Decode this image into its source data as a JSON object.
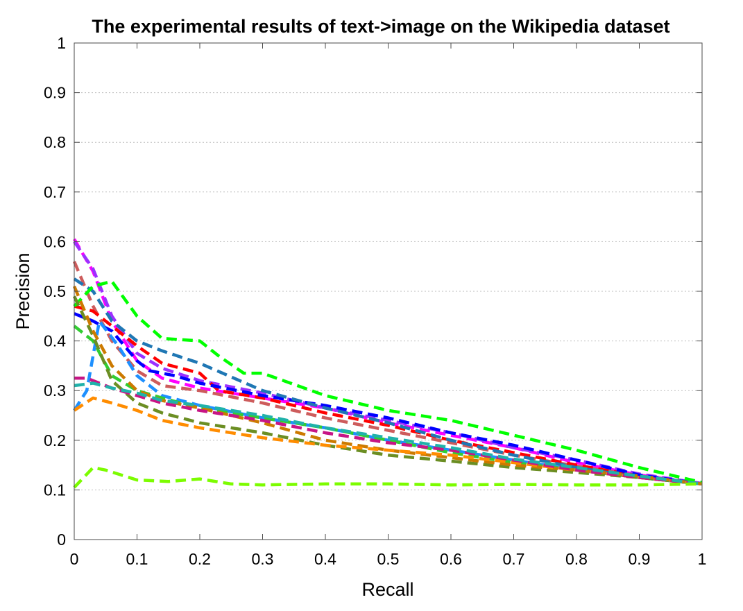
{
  "chart_data": {
    "type": "line",
    "title": "The experimental results of text->image on the Wikipedia dataset",
    "xlabel": "Recall",
    "ylabel": "Precision",
    "xlim": [
      0,
      1
    ],
    "ylim": [
      0,
      1
    ],
    "xticks": [
      "0",
      "0.1",
      "0.2",
      "0.3",
      "0.4",
      "0.5",
      "0.6",
      "0.7",
      "0.8",
      "0.9",
      "1"
    ],
    "yticks": [
      "0",
      "0.1",
      "0.2",
      "0.3",
      "0.4",
      "0.5",
      "0.6",
      "0.7",
      "0.8",
      "0.9",
      "1"
    ],
    "grid": "horizontal",
    "legend": "none",
    "series": [
      {
        "color": "#ff00ff",
        "x": [
          0,
          0.03,
          0.06,
          0.1,
          0.14,
          0.2,
          0.3,
          0.4,
          0.5,
          0.6,
          0.7,
          0.8,
          0.9,
          1.0
        ],
        "y": [
          0.605,
          0.54,
          0.44,
          0.36,
          0.325,
          0.305,
          0.285,
          0.265,
          0.235,
          0.21,
          0.185,
          0.155,
          0.13,
          0.112
        ]
      },
      {
        "color": "#9b30ff",
        "x": [
          0,
          0.03,
          0.06,
          0.1,
          0.14,
          0.2,
          0.3,
          0.4,
          0.5,
          0.6,
          0.7,
          0.8,
          0.9,
          1.0
        ],
        "y": [
          0.6,
          0.545,
          0.45,
          0.375,
          0.345,
          0.32,
          0.295,
          0.265,
          0.24,
          0.215,
          0.185,
          0.16,
          0.132,
          0.113
        ]
      },
      {
        "color": "#cd5c5c",
        "x": [
          0,
          0.03,
          0.06,
          0.1,
          0.14,
          0.2,
          0.3,
          0.4,
          0.5,
          0.6,
          0.7,
          0.8,
          0.9,
          1.0
        ],
        "y": [
          0.56,
          0.47,
          0.4,
          0.34,
          0.31,
          0.3,
          0.275,
          0.245,
          0.22,
          0.195,
          0.17,
          0.148,
          0.128,
          0.112
        ]
      },
      {
        "color": "#ff0000",
        "x": [
          0,
          0.03,
          0.06,
          0.1,
          0.14,
          0.2,
          0.23,
          0.3,
          0.4,
          0.5,
          0.6,
          0.7,
          0.8,
          0.9,
          1.0
        ],
        "y": [
          0.47,
          0.46,
          0.43,
          0.39,
          0.355,
          0.335,
          0.3,
          0.285,
          0.255,
          0.23,
          0.2,
          0.175,
          0.15,
          0.128,
          0.112
        ]
      },
      {
        "color": "#0000ff",
        "x": [
          0,
          0.03,
          0.06,
          0.1,
          0.12,
          0.16,
          0.2,
          0.3,
          0.4,
          0.5,
          0.6,
          0.7,
          0.8,
          0.9,
          1.0
        ],
        "y": [
          0.455,
          0.44,
          0.42,
          0.36,
          0.34,
          0.33,
          0.315,
          0.29,
          0.27,
          0.245,
          0.215,
          0.19,
          0.16,
          0.13,
          0.112
        ]
      },
      {
        "color": "#1e90ff",
        "x": [
          0,
          0.02,
          0.04,
          0.07,
          0.1,
          0.14,
          0.2,
          0.3,
          0.4,
          0.5,
          0.6,
          0.7,
          0.8,
          0.9,
          1.0
        ],
        "y": [
          0.26,
          0.3,
          0.44,
          0.39,
          0.33,
          0.29,
          0.27,
          0.245,
          0.225,
          0.2,
          0.18,
          0.16,
          0.14,
          0.125,
          0.112
        ]
      },
      {
        "color": "#1f77b4",
        "x": [
          0,
          0.03,
          0.06,
          0.1,
          0.14,
          0.2,
          0.3,
          0.4,
          0.5,
          0.6,
          0.7,
          0.8,
          0.9,
          1.0
        ],
        "y": [
          0.525,
          0.5,
          0.44,
          0.4,
          0.38,
          0.355,
          0.3,
          0.265,
          0.235,
          0.2,
          0.17,
          0.145,
          0.125,
          0.112
        ]
      },
      {
        "color": "#00ff00",
        "x": [
          0,
          0.03,
          0.06,
          0.1,
          0.14,
          0.2,
          0.23,
          0.27,
          0.3,
          0.4,
          0.5,
          0.6,
          0.7,
          0.8,
          0.9,
          1.0
        ],
        "y": [
          0.47,
          0.51,
          0.52,
          0.45,
          0.405,
          0.4,
          0.37,
          0.335,
          0.335,
          0.29,
          0.26,
          0.24,
          0.21,
          0.18,
          0.145,
          0.115
        ]
      },
      {
        "color": "#32cd32",
        "x": [
          0,
          0.03,
          0.06,
          0.1,
          0.14,
          0.2,
          0.3,
          0.4,
          0.5,
          0.6,
          0.7,
          0.8,
          0.9,
          1.0
        ],
        "y": [
          0.43,
          0.4,
          0.33,
          0.3,
          0.285,
          0.265,
          0.245,
          0.225,
          0.2,
          0.175,
          0.155,
          0.14,
          0.125,
          0.112
        ]
      },
      {
        "color": "#6b8e23",
        "x": [
          0,
          0.03,
          0.06,
          0.1,
          0.14,
          0.2,
          0.3,
          0.4,
          0.5,
          0.6,
          0.7,
          0.8,
          0.9,
          1.0
        ],
        "y": [
          0.49,
          0.41,
          0.32,
          0.275,
          0.255,
          0.235,
          0.215,
          0.19,
          0.17,
          0.158,
          0.145,
          0.135,
          0.125,
          0.112
        ]
      },
      {
        "color": "#cc7a00",
        "x": [
          0,
          0.03,
          0.06,
          0.1,
          0.14,
          0.2,
          0.3,
          0.4,
          0.5,
          0.6,
          0.7,
          0.8,
          0.9,
          1.0
        ],
        "y": [
          0.51,
          0.42,
          0.35,
          0.3,
          0.28,
          0.265,
          0.235,
          0.2,
          0.18,
          0.165,
          0.15,
          0.14,
          0.128,
          0.112
        ]
      },
      {
        "color": "#ff8c00",
        "x": [
          0,
          0.03,
          0.06,
          0.1,
          0.14,
          0.2,
          0.3,
          0.4,
          0.5,
          0.6,
          0.7,
          0.8,
          0.9,
          1.0
        ],
        "y": [
          0.26,
          0.285,
          0.275,
          0.26,
          0.24,
          0.225,
          0.205,
          0.19,
          0.18,
          0.17,
          0.155,
          0.14,
          0.125,
          0.112
        ]
      },
      {
        "color": "#c71585",
        "x": [
          0,
          0.02,
          0.06,
          0.1,
          0.14,
          0.2,
          0.3,
          0.4,
          0.5,
          0.6,
          0.7,
          0.8,
          0.9,
          1.0
        ],
        "y": [
          0.325,
          0.325,
          0.305,
          0.29,
          0.275,
          0.26,
          0.24,
          0.215,
          0.195,
          0.18,
          0.16,
          0.14,
          0.125,
          0.112
        ]
      },
      {
        "color": "#20b2aa",
        "x": [
          0,
          0.03,
          0.06,
          0.1,
          0.14,
          0.2,
          0.3,
          0.4,
          0.5,
          0.6,
          0.7,
          0.8,
          0.9,
          1.0
        ],
        "y": [
          0.31,
          0.315,
          0.305,
          0.295,
          0.28,
          0.27,
          0.25,
          0.225,
          0.205,
          0.185,
          0.162,
          0.145,
          0.128,
          0.112
        ]
      },
      {
        "color": "#7cfc00",
        "x": [
          0,
          0.03,
          0.05,
          0.1,
          0.15,
          0.2,
          0.22,
          0.25,
          0.3,
          0.4,
          0.5,
          0.6,
          0.7,
          0.8,
          0.9,
          1.0
        ],
        "y": [
          0.105,
          0.145,
          0.14,
          0.12,
          0.117,
          0.122,
          0.118,
          0.112,
          0.11,
          0.112,
          0.112,
          0.11,
          0.111,
          0.11,
          0.11,
          0.112
        ]
      }
    ]
  }
}
